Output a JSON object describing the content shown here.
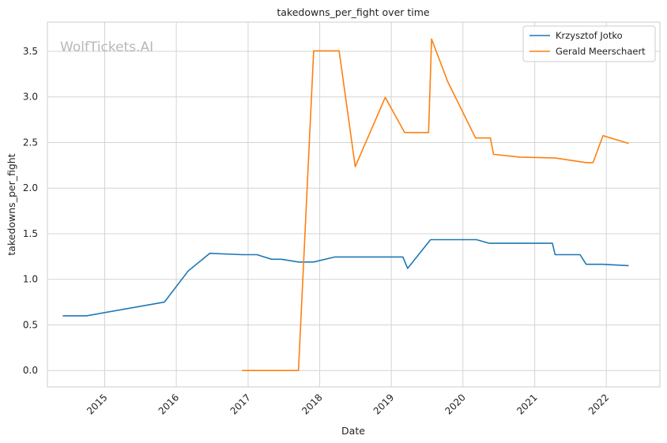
{
  "watermark": "WolfTickets.AI",
  "chart_data": {
    "type": "line",
    "title": "takedowns_per_fight over time",
    "xlabel": "Date",
    "ylabel": "takedowns_per_fight",
    "x_ticks": [
      "2015",
      "2016",
      "2017",
      "2018",
      "2019",
      "2020",
      "2021",
      "2022"
    ],
    "y_ticks": [
      "0.0",
      "0.5",
      "1.0",
      "1.5",
      "2.0",
      "2.5",
      "3.0",
      "3.5"
    ],
    "xlim": [
      "2014-03-15",
      "2022-10-01"
    ],
    "ylim": [
      -0.18,
      3.82
    ],
    "grid": true,
    "legend_position": "top-right",
    "series": [
      {
        "name": "Krzysztof Jotko",
        "color": "#1f77b4",
        "points": [
          [
            "2014-06-01",
            0.6
          ],
          [
            "2014-10-01",
            0.6
          ],
          [
            "2015-11-01",
            0.75
          ],
          [
            "2016-03-01",
            1.09
          ],
          [
            "2016-06-20",
            1.285
          ],
          [
            "2016-12-01",
            1.27
          ],
          [
            "2017-02-15",
            1.27
          ],
          [
            "2017-05-01",
            1.22
          ],
          [
            "2017-06-20",
            1.22
          ],
          [
            "2017-09-15",
            1.19
          ],
          [
            "2017-12-01",
            1.19
          ],
          [
            "2018-03-20",
            1.245
          ],
          [
            "2019-03-01",
            1.245
          ],
          [
            "2019-03-25",
            1.12
          ],
          [
            "2019-07-20",
            1.435
          ],
          [
            "2020-03-10",
            1.435
          ],
          [
            "2020-05-15",
            1.395
          ],
          [
            "2021-04-01",
            1.395
          ],
          [
            "2021-04-15",
            1.27
          ],
          [
            "2021-08-20",
            1.27
          ],
          [
            "2021-09-20",
            1.165
          ],
          [
            "2021-12-15",
            1.165
          ],
          [
            "2022-04-25",
            1.15
          ]
        ]
      },
      {
        "name": "Gerald Meerschaert",
        "color": "#ff7f0e",
        "points": [
          [
            "2016-12-01",
            0.0
          ],
          [
            "2017-09-15",
            0.0
          ],
          [
            "2017-12-01",
            3.505
          ],
          [
            "2018-04-10",
            3.505
          ],
          [
            "2018-07-01",
            2.235
          ],
          [
            "2018-12-01",
            2.995
          ],
          [
            "2019-03-10",
            2.61
          ],
          [
            "2019-07-10",
            2.61
          ],
          [
            "2019-07-25",
            3.635
          ],
          [
            "2019-10-15",
            3.17
          ],
          [
            "2020-03-05",
            2.55
          ],
          [
            "2020-05-20",
            2.55
          ],
          [
            "2020-06-05",
            2.37
          ],
          [
            "2020-10-15",
            2.34
          ],
          [
            "2021-04-15",
            2.33
          ],
          [
            "2021-09-20",
            2.28
          ],
          [
            "2021-10-25",
            2.28
          ],
          [
            "2021-12-15",
            2.575
          ],
          [
            "2022-04-25",
            2.49
          ]
        ]
      }
    ]
  }
}
